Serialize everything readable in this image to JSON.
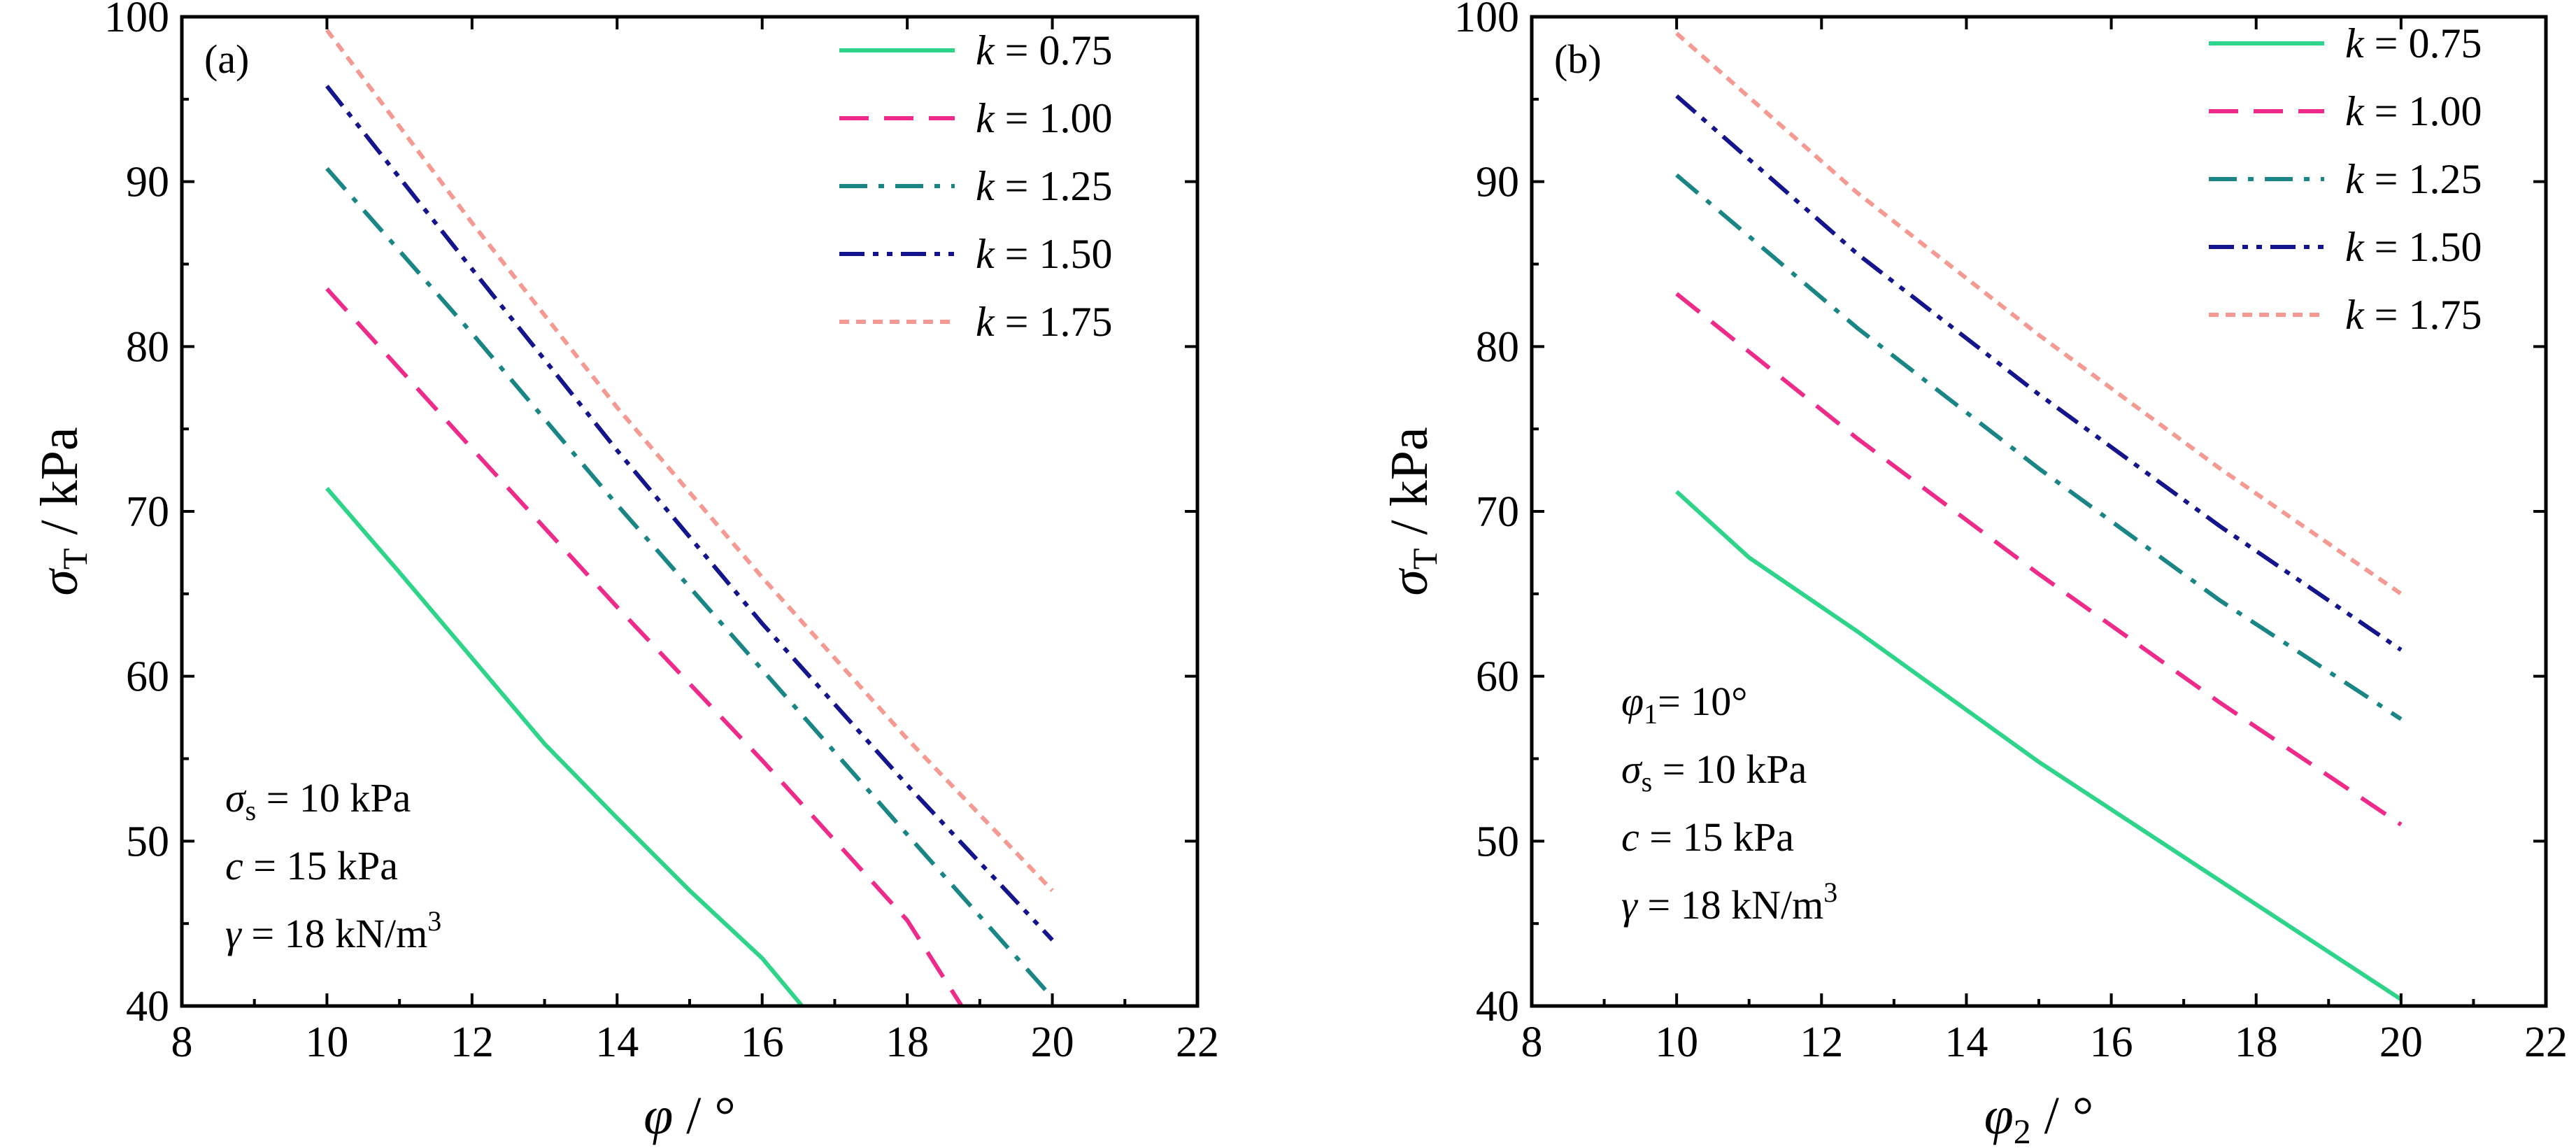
{
  "chart_data": [
    {
      "type": "line",
      "panel_label": "(a)",
      "xlabel_symbol": "φ",
      "xlabel_sub": "",
      "xlabel_unit": " / °",
      "ylabel_symbol": "σ",
      "ylabel_sub": "T",
      "ylabel_unit": " / kPa",
      "xlim": [
        8,
        22
      ],
      "ylim": [
        40,
        100
      ],
      "xticks": [
        "8",
        "10",
        "12",
        "14",
        "16",
        "18",
        "20",
        "22"
      ],
      "yticks": [
        "40",
        "50",
        "60",
        "70",
        "80",
        "90",
        "100"
      ],
      "legend_position": "top-right",
      "series": [
        {
          "name": "k = 0.75",
          "k_value": "0.75",
          "color": "#2ed48a",
          "dash": "solid",
          "x": [
            10,
            11,
            12,
            13,
            14,
            15,
            16,
            16.55
          ],
          "y": [
            71.4,
            66.3,
            61.1,
            55.9,
            51.4,
            47.0,
            42.9,
            40.0
          ]
        },
        {
          "name": "k = 1.00",
          "k_value": "1.00",
          "color": "#ee2b8a",
          "dash": "dash",
          "x": [
            10,
            12,
            14,
            16,
            18,
            18.75
          ],
          "y": [
            83.5,
            73.8,
            64.2,
            54.9,
            45.2,
            40.0
          ]
        },
        {
          "name": "k = 1.25",
          "k_value": "1.25",
          "color": "#1a8585",
          "dash": "dashdot",
          "x": [
            10,
            12,
            14,
            16,
            18,
            20
          ],
          "y": [
            90.8,
            80.8,
            70.4,
            60.4,
            50.4,
            40.5
          ]
        },
        {
          "name": "k = 1.50",
          "k_value": "1.50",
          "color": "#14148c",
          "dash": "dashdotdot",
          "x": [
            10,
            12,
            14,
            16,
            18,
            20
          ],
          "y": [
            95.8,
            84.7,
            73.7,
            63.2,
            53.4,
            44.0
          ]
        },
        {
          "name": "k = 1.75",
          "k_value": "1.75",
          "color": "#f59a92",
          "dash": "dot",
          "x": [
            10,
            12,
            14,
            16,
            18,
            20
          ],
          "y": [
            99.2,
            87.5,
            76.3,
            66.0,
            56.2,
            47.0
          ]
        }
      ],
      "annotations": [
        {
          "sym": "σ",
          "sub": "s",
          "text": " = 10 kPa",
          "sup": ""
        },
        {
          "sym": "c",
          "sub": "",
          "text": "  = 15 kPa",
          "sup": ""
        },
        {
          "sym": "γ",
          "sub": "",
          "text": " = 18 kN/m",
          "sup": "3"
        }
      ]
    },
    {
      "type": "line",
      "panel_label": "(b)",
      "xlabel_symbol": "φ",
      "xlabel_sub": "2",
      "xlabel_unit": " / °",
      "ylabel_symbol": "σ",
      "ylabel_sub": "T",
      "ylabel_unit": " / kPa",
      "xlim": [
        8,
        22
      ],
      "ylim": [
        40,
        100
      ],
      "xticks": [
        "8",
        "10",
        "12",
        "14",
        "16",
        "18",
        "20",
        "22"
      ],
      "yticks": [
        "40",
        "50",
        "60",
        "70",
        "80",
        "90",
        "100"
      ],
      "legend_position": "top-right",
      "series": [
        {
          "name": "k = 0.75",
          "k_value": "0.75",
          "color": "#2ed48a",
          "dash": "solid",
          "x": [
            10,
            11,
            12.5,
            15,
            17.5,
            20
          ],
          "y": [
            71.2,
            67.2,
            62.7,
            54.8,
            47.6,
            40.4
          ]
        },
        {
          "name": "k = 1.00",
          "k_value": "1.00",
          "color": "#ee2b8a",
          "dash": "dash",
          "x": [
            10,
            12.5,
            15,
            17.5,
            20
          ],
          "y": [
            83.2,
            74.4,
            66.2,
            58.4,
            51.0
          ]
        },
        {
          "name": "k = 1.25",
          "k_value": "1.25",
          "color": "#1a8585",
          "dash": "dashdot",
          "x": [
            10,
            12.5,
            15,
            17.5,
            20
          ],
          "y": [
            90.4,
            81.1,
            72.6,
            64.6,
            57.4
          ]
        },
        {
          "name": "k = 1.50",
          "k_value": "1.50",
          "color": "#14148c",
          "dash": "dashdotdot",
          "x": [
            10,
            12.5,
            15,
            17.5,
            20
          ],
          "y": [
            95.2,
            85.6,
            77.1,
            69.1,
            61.6
          ]
        },
        {
          "name": "k = 1.75",
          "k_value": "1.75",
          "color": "#f59a92",
          "dash": "dot",
          "x": [
            10,
            12.5,
            15,
            17.5,
            20
          ],
          "y": [
            99.0,
            89.3,
            80.7,
            72.6,
            65.0
          ]
        }
      ],
      "annotations": [
        {
          "sym": "φ",
          "sub": "1",
          "text": "= 10°",
          "sup": ""
        },
        {
          "sym": "σ",
          "sub": "s",
          "text": " = 10 kPa",
          "sup": ""
        },
        {
          "sym": "c",
          "sub": "",
          "text": "  = 15 kPa",
          "sup": ""
        },
        {
          "sym": "γ",
          "sub": "",
          "text": " = 18 kN/m",
          "sup": "3"
        }
      ]
    }
  ]
}
